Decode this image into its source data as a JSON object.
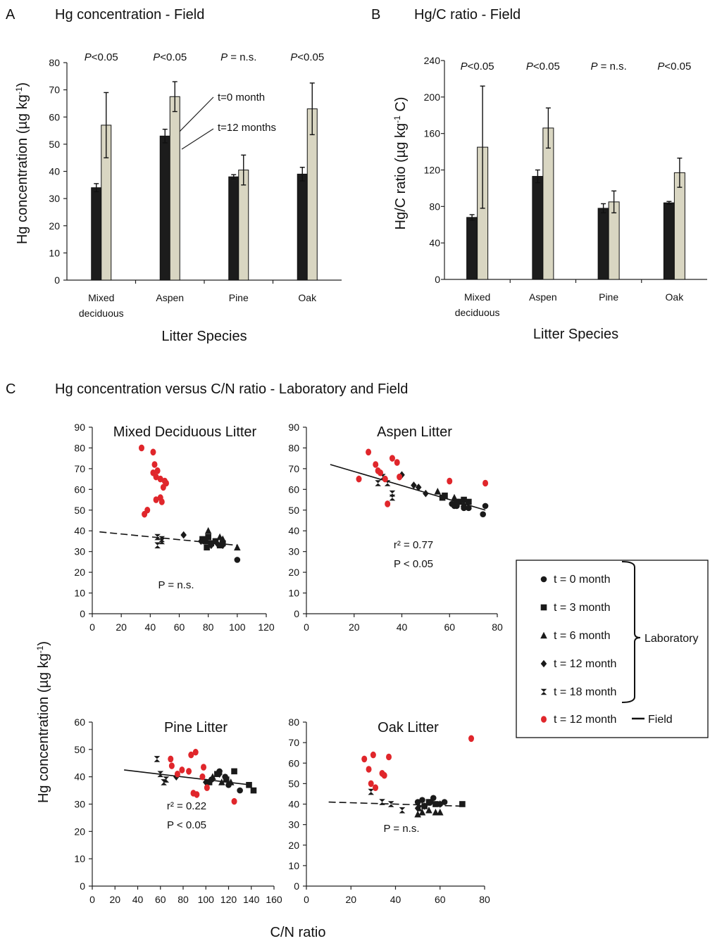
{
  "panels": {
    "A": {
      "letter": "A",
      "title": "Hg concentration - Field"
    },
    "B": {
      "letter": "B",
      "title": "Hg/C ratio - Field"
    },
    "C": {
      "letter": "C",
      "title": "Hg concentration versus  C/N ratio - Laboratory and Field"
    }
  },
  "shared_labels": {
    "scatter_ylabel": "Hg concentration (µg kg",
    "scatter_ylabel_sup": "-1",
    "scatter_ylabel_end": ")",
    "scatter_xlabel": "C/N ratio"
  },
  "legend": {
    "items": [
      "t = 0 month",
      "t = 3 month",
      "t = 6 month",
      "t = 12 month",
      "t = 18 month",
      "t = 12 month"
    ],
    "group_laboratory": "Laboratory",
    "group_field": "Field",
    "colors": {
      "laboratory": "#1a1a1a",
      "field": "#e0262b"
    }
  },
  "chart_data": [
    {
      "type": "bar",
      "panel": "A",
      "title": "Hg concentration - Field",
      "ylabel": "Hg concentration (µg kg",
      "ylabel_sup": "-1",
      "ylabel_end": ")",
      "xlabel": "Litter Species",
      "categories": [
        [
          "Mixed",
          "deciduous"
        ],
        [
          "Aspen"
        ],
        [
          "Pine"
        ],
        [
          "Oak"
        ]
      ],
      "ylim": [
        0,
        80
      ],
      "yticks": [
        0,
        10,
        20,
        30,
        40,
        50,
        60,
        70,
        80
      ],
      "series": [
        {
          "name": "t=0 month",
          "color": "#1c1c1c",
          "values": [
            34,
            53,
            38,
            39
          ],
          "errors": [
            1.5,
            2.5,
            0.8,
            2.5
          ]
        },
        {
          "name": "t=12 months",
          "color": "#d9d6c2",
          "values": [
            57,
            67.5,
            40.5,
            63
          ],
          "errors": [
            12,
            5.5,
            5.5,
            9.5
          ]
        }
      ],
      "annotations": [
        {
          "pre": "P",
          "post": "<0.05"
        },
        {
          "pre": "P",
          "post": "<0.05"
        },
        {
          "pre": "P",
          "post": " = n.s."
        },
        {
          "pre": "P",
          "post": "<0.05"
        }
      ]
    },
    {
      "type": "bar",
      "panel": "B",
      "title": "Hg/C ratio - Field",
      "ylabel": "Hg/C ratio  (µg kg",
      "ylabel_sup": "-1",
      "ylabel_end": " C)",
      "xlabel": "Litter Species",
      "categories": [
        [
          "Mixed",
          "deciduous"
        ],
        [
          "Aspen"
        ],
        [
          "Pine"
        ],
        [
          "Oak"
        ]
      ],
      "ylim": [
        0,
        240
      ],
      "yticks": [
        0,
        40,
        80,
        120,
        160,
        200,
        240
      ],
      "series": [
        {
          "color": "#1c1c1c",
          "values": [
            68,
            113,
            78,
            84
          ],
          "errors": [
            3,
            7,
            5,
            1.5
          ]
        },
        {
          "color": "#d9d6c2",
          "values": [
            145,
            166,
            85,
            117
          ],
          "errors": [
            67,
            22,
            12,
            16
          ]
        }
      ],
      "annotations": [
        {
          "pre": "P",
          "post": "<0.05"
        },
        {
          "pre": "P",
          "post": "<0.05"
        },
        {
          "pre": "P",
          "post": " = n.s."
        },
        {
          "pre": "P",
          "post": "<0.05"
        }
      ]
    },
    {
      "type": "scatter",
      "panel": "C1",
      "title": "Mixed Deciduous Litter",
      "xlim": [
        0,
        120
      ],
      "xticks": [
        0,
        20,
        40,
        60,
        80,
        100,
        120
      ],
      "ylim": [
        0,
        90
      ],
      "yticks": [
        0,
        10,
        20,
        30,
        40,
        50,
        60,
        70,
        80,
        90
      ],
      "trend": {
        "style": "dashed",
        "x": [
          5,
          100
        ],
        "y": [
          39.5,
          33
        ]
      },
      "stats": [
        "P = n.s."
      ],
      "field": [
        [
          34,
          80
        ],
        [
          42,
          78
        ],
        [
          43,
          72
        ],
        [
          42,
          68
        ],
        [
          45,
          69
        ],
        [
          44,
          66
        ],
        [
          47,
          65
        ],
        [
          50,
          64
        ],
        [
          51,
          63
        ],
        [
          49,
          61
        ],
        [
          44,
          55
        ],
        [
          47,
          56
        ],
        [
          48,
          54
        ],
        [
          38,
          50
        ],
        [
          36,
          48
        ]
      ],
      "lab": [
        [
          0,
          [
            [
              100,
              26
            ]
          ]
        ],
        [
          1,
          [
            [
              78,
              35
            ],
            [
              80,
              37
            ],
            [
              76,
              36
            ],
            [
              82,
              34
            ],
            [
              85,
              35
            ],
            [
              88,
              33
            ],
            [
              90,
              34
            ],
            [
              79,
              32
            ]
          ]
        ],
        [
          2,
          [
            [
              80,
              40
            ],
            [
              90,
              36
            ],
            [
              100,
              32
            ],
            [
              88,
              37
            ]
          ]
        ],
        [
          3,
          [
            [
              63,
              38
            ],
            [
              75,
              35
            ],
            [
              82,
              33
            ],
            [
              86,
              34
            ],
            [
              90,
              33
            ]
          ]
        ],
        [
          4,
          [
            [
              45,
              37
            ],
            [
              48,
              36
            ],
            [
              45,
              33
            ],
            [
              48,
              35
            ]
          ]
        ]
      ]
    },
    {
      "type": "scatter",
      "panel": "C2",
      "title": "Aspen Litter",
      "xlim": [
        0,
        80
      ],
      "xticks": [
        0,
        20,
        40,
        60,
        80
      ],
      "ylim": [
        0,
        90
      ],
      "yticks": [
        0,
        10,
        20,
        30,
        40,
        50,
        60,
        70,
        80,
        90
      ],
      "trend": {
        "style": "solid",
        "x": [
          10,
          75
        ],
        "y": [
          72,
          50
        ]
      },
      "stats": [
        "r² = 0.77",
        "P < 0.05"
      ],
      "field": [
        [
          22,
          65
        ],
        [
          26,
          78
        ],
        [
          29,
          72
        ],
        [
          30,
          69
        ],
        [
          31,
          68
        ],
        [
          33,
          65
        ],
        [
          36,
          75
        ],
        [
          38,
          73
        ],
        [
          39,
          66
        ],
        [
          34,
          53
        ],
        [
          60,
          64
        ],
        [
          75,
          63
        ]
      ],
      "lab": [
        [
          0,
          [
            [
              62,
              52
            ],
            [
              66,
              51
            ],
            [
              68,
              51
            ],
            [
              74,
              48
            ],
            [
              75,
              52
            ],
            [
              61,
              53
            ],
            [
              63,
              52
            ]
          ]
        ],
        [
          1,
          [
            [
              57,
              56
            ],
            [
              58,
              57
            ],
            [
              63,
              54
            ],
            [
              66,
              55
            ],
            [
              68,
              54
            ],
            [
              64,
              54
            ]
          ]
        ],
        [
          2,
          [
            [
              55,
              59
            ],
            [
              62,
              56
            ],
            [
              66,
              53
            ]
          ]
        ],
        [
          3,
          [
            [
              40,
              67
            ],
            [
              45,
              62
            ],
            [
              47,
              61
            ],
            [
              50,
              58
            ]
          ]
        ],
        [
          4,
          [
            [
              30,
              63
            ],
            [
              32,
              66
            ],
            [
              34,
              63
            ],
            [
              36,
              58
            ],
            [
              36,
              56
            ]
          ]
        ]
      ]
    },
    {
      "type": "scatter",
      "panel": "C3",
      "title": "Pine Litter",
      "xlim": [
        0,
        160
      ],
      "xticks": [
        0,
        20,
        40,
        60,
        80,
        100,
        120,
        140,
        160
      ],
      "ylim": [
        0,
        60
      ],
      "yticks": [
        0,
        10,
        20,
        30,
        40,
        50,
        60
      ],
      "trend": {
        "style": "solid",
        "x": [
          28,
          140
        ],
        "y": [
          42.5,
          37
        ]
      },
      "stats": [
        "r² = 0.22",
        "P < 0.05"
      ],
      "field": [
        [
          69,
          46.5
        ],
        [
          70,
          44
        ],
        [
          75,
          41
        ],
        [
          79,
          42.5
        ],
        [
          85,
          42
        ],
        [
          87,
          48
        ],
        [
          91,
          49
        ],
        [
          98,
          43.5
        ],
        [
          97,
          40
        ],
        [
          101,
          36
        ],
        [
          89,
          34
        ],
        [
          92,
          33.5
        ],
        [
          125,
          31
        ]
      ],
      "lab": [
        [
          0,
          [
            [
              105,
              39
            ],
            [
              112,
              42
            ],
            [
              117,
              40
            ],
            [
              120,
              37
            ],
            [
              130,
              35
            ]
          ]
        ],
        [
          1,
          [
            [
              103,
              38
            ],
            [
              110,
              41
            ],
            [
              118,
              39
            ],
            [
              125,
              42
            ],
            [
              138,
              37
            ],
            [
              142,
              35
            ]
          ]
        ],
        [
          2,
          [
            [
              106,
              40
            ],
            [
              114,
              38
            ],
            [
              122,
              38
            ]
          ]
        ],
        [
          3,
          [
            [
              74,
              40
            ],
            [
              100,
              38
            ],
            [
              112,
              41
            ]
          ]
        ],
        [
          4,
          [
            [
              57,
              46.5
            ],
            [
              60,
              41
            ],
            [
              63,
              38
            ],
            [
              65,
              39
            ]
          ]
        ]
      ]
    },
    {
      "type": "scatter",
      "panel": "C4",
      "title": "Oak Litter",
      "xlim": [
        0,
        80
      ],
      "xticks": [
        0,
        20,
        40,
        60,
        80
      ],
      "ylim": [
        0,
        80
      ],
      "yticks": [
        0,
        10,
        20,
        30,
        40,
        50,
        60,
        70,
        80
      ],
      "trend": {
        "style": "dashed",
        "x": [
          10,
          70
        ],
        "y": [
          41,
          39
        ]
      },
      "stats": [
        "P = n.s."
      ],
      "field": [
        [
          26,
          62
        ],
        [
          30,
          64
        ],
        [
          28,
          57
        ],
        [
          29,
          50
        ],
        [
          31,
          48
        ],
        [
          34,
          55
        ],
        [
          35,
          54
        ],
        [
          37,
          63
        ],
        [
          74,
          72
        ]
      ],
      "lab": [
        [
          0,
          [
            [
              50,
              41
            ],
            [
              52,
              42
            ],
            [
              57,
              43
            ],
            [
              60,
              40
            ],
            [
              62,
              41
            ]
          ]
        ],
        [
          1,
          [
            [
              53,
              39
            ],
            [
              55,
              41
            ],
            [
              58,
              40
            ],
            [
              70,
              40
            ]
          ]
        ],
        [
          2,
          [
            [
              50,
              35
            ],
            [
              52,
              36
            ],
            [
              55,
              37
            ],
            [
              58,
              36
            ],
            [
              60,
              36
            ]
          ]
        ],
        [
          3,
          [
            [
              50,
              38
            ],
            [
              53,
              39
            ],
            [
              56,
              41
            ],
            [
              60,
              40
            ]
          ]
        ],
        [
          4,
          [
            [
              29,
              46
            ],
            [
              34,
              41
            ],
            [
              38,
              40
            ],
            [
              43,
              37
            ],
            [
              51,
              38
            ]
          ]
        ]
      ]
    }
  ]
}
